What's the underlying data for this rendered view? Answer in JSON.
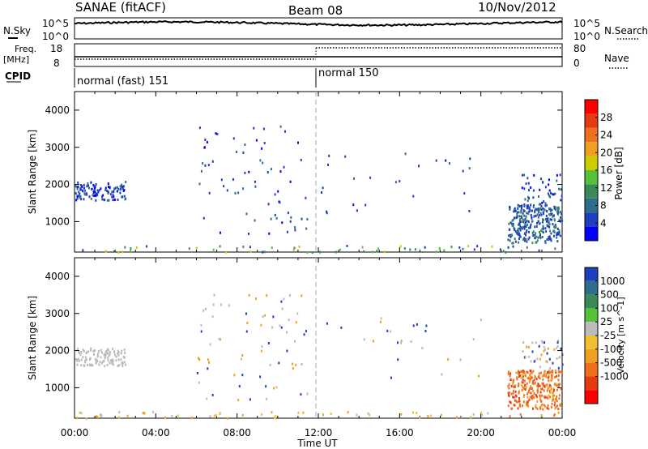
{
  "header": {
    "station": "SANAE (fitACF)",
    "beam": "Beam 08",
    "date": "10/Nov/2012"
  },
  "strip_labels": {
    "nsky": "N.Sky",
    "nsearch": "N.Search",
    "freq_line1": "Freq.",
    "freq_line2": "[MHz]",
    "cpid": "CPID",
    "nave": "Nave",
    "noise_hi": "10^5",
    "noise_lo": "10^0",
    "freq_hi": "18",
    "freq_lo": "8",
    "nave_hi": "80",
    "nave_lo": "0"
  },
  "cpid_modes": [
    {
      "label": "normal (fast) 151",
      "start_hour": 0,
      "end_hour": 12
    },
    {
      "label": "normal 150",
      "start_hour": 12,
      "end_hour": 24
    }
  ],
  "colors": {
    "power_scale": [
      "#0000ff",
      "#1e3fbf",
      "#2e6e8c",
      "#3a8a5a",
      "#55c23a",
      "#cccc00",
      "#f0a020",
      "#f07020",
      "#e83a10",
      "#ff0000"
    ],
    "velocity_scale": [
      "#1e3fbf",
      "#2e6e8c",
      "#3a8a5a",
      "#55c23a",
      "#bbbbbb",
      "#f0c030",
      "#f0a020",
      "#f07020",
      "#e83a10",
      "#ff0000"
    ]
  },
  "chart_data": [
    {
      "type": "heatmap",
      "title": "Power",
      "xlabel": "",
      "ylabel": "Slant Range [km]",
      "ylim": [
        180,
        4500
      ],
      "y_ticks": [
        "1000",
        "2000",
        "3000",
        "4000"
      ],
      "colorbar_label": "Power [dB]",
      "colorbar_ticks": [
        "4",
        "8",
        "12",
        "16",
        "20",
        "24",
        "28"
      ],
      "colorbar_range": [
        0,
        32
      ]
    },
    {
      "type": "heatmap",
      "title": "Velocity",
      "xlabel": "Time UT",
      "ylabel": "Slant Range [km]",
      "xlim": [
        0,
        24
      ],
      "ylim": [
        180,
        4500
      ],
      "x_ticks": [
        "00:00",
        "04:00",
        "08:00",
        "12:00",
        "16:00",
        "20:00",
        "00:00"
      ],
      "y_ticks": [
        "1000",
        "2000",
        "3000",
        "4000"
      ],
      "colorbar_label": "Velocity [m s^-1]",
      "colorbar_ticks": [
        "1000",
        "500",
        "100",
        "25",
        "-25",
        "-100",
        "-500",
        "-1000"
      ]
    }
  ]
}
